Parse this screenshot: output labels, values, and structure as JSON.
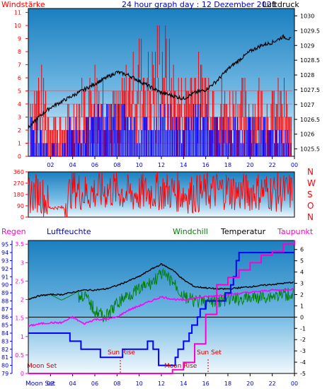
{
  "top_panel": {
    "left_label": "Windstärke",
    "title": "24 hour graph day : 12 Dezember 2021",
    "right_label": "Luftdruck",
    "left_ticks": [
      "0",
      "1",
      "2",
      "3",
      "4",
      "5",
      "6",
      "7",
      "8",
      "9",
      "10",
      "11"
    ],
    "right_ticks": [
      "1025.5",
      "1026",
      "1026.5",
      "1027",
      "1027.5",
      "1028",
      "1028.5",
      "1029",
      "1029.5",
      "1030"
    ],
    "x_ticks": [
      "02",
      "04",
      "06",
      "08",
      "10",
      "12",
      "14",
      "16",
      "18",
      "20",
      "22",
      "00"
    ],
    "colors": {
      "wind": "#ff0000",
      "gust": "#0000ff",
      "pressure": "#000000",
      "label_red": "#ff0000",
      "title_blue": "#0000cc"
    }
  },
  "mid_panel": {
    "left_ticks": [
      "0",
      "90",
      "180",
      "270",
      "360"
    ],
    "right_letters": [
      "N",
      "W",
      "S",
      "O",
      "N"
    ],
    "colors": {
      "direction": "#ff0000",
      "letters": "#ff0000"
    }
  },
  "bottom_panel": {
    "labels": {
      "regen": "Regen",
      "luftfeuchte": "Luftfeuchte",
      "windchill": "Windchill",
      "temperatur": "Temperatur",
      "taupunkt": "Taupunkt"
    },
    "rain_ticks": [
      "0",
      "0.5",
      "1",
      "1.5",
      "2",
      "2.5",
      "3",
      "3.5"
    ],
    "humidity_ticks": [
      "79",
      "80",
      "81",
      "82",
      "83",
      "84",
      "85",
      "86",
      "87",
      "88",
      "89",
      "90",
      "91",
      "92",
      "93",
      "94",
      "95"
    ],
    "temp_ticks": [
      "-5",
      "-4",
      "-3",
      "-2",
      "-1",
      "0",
      "1",
      "2",
      "3",
      "4",
      "5",
      "6"
    ],
    "x_ticks": [
      "02",
      "04",
      "06",
      "08",
      "10",
      "12",
      "14",
      "16",
      "18",
      "20",
      "22",
      "00"
    ],
    "events": {
      "moon_set": "Moon Set",
      "sun_rise": "Sun Rise",
      "moon_rise": "Moon Rise",
      "sun_set": "Sun Set",
      "bottom_left": "Moon Set"
    },
    "colors": {
      "regen": "#ff00cc",
      "luftfeuchte": "#0000cc",
      "windchill": "#008000",
      "temperatur": "#000000",
      "taupunkt": "#ff00cc",
      "rain": "#ff00cc",
      "humidity": "#0000ff",
      "event": "#cc0000"
    }
  },
  "chart_data": [
    {
      "type": "line",
      "title": "24 hour graph day : 12 Dezember 2021",
      "x_hours": [
        0,
        24
      ],
      "series": [
        {
          "name": "Luftdruck",
          "axis": "right",
          "ylim": [
            1025.25,
            1030.25
          ],
          "x": [
            0,
            1,
            2,
            3,
            4,
            5,
            6,
            7,
            8,
            9,
            10,
            11,
            12,
            13,
            14,
            15,
            16,
            17,
            18,
            19,
            20,
            21,
            22,
            23,
            23.7
          ],
          "values": [
            1026.2,
            1026.6,
            1026.9,
            1027.1,
            1027.3,
            1027.5,
            1027.7,
            1027.9,
            1028.1,
            1028.0,
            1027.8,
            1027.6,
            1027.4,
            1027.3,
            1027.2,
            1027.4,
            1027.5,
            1027.8,
            1028.2,
            1028.5,
            1028.8,
            1029.0,
            1029.1,
            1029.3,
            1029.2
          ]
        },
        {
          "name": "Windstärke",
          "axis": "left",
          "ylim": [
            0,
            11.3
          ],
          "x": [
            0,
            1,
            2,
            3,
            4,
            5,
            6,
            7,
            8,
            9,
            10,
            11,
            12,
            13,
            14,
            15,
            16,
            17,
            18,
            19,
            20,
            21,
            22,
            23,
            24
          ],
          "values": [
            2,
            2,
            1,
            1,
            2,
            2,
            3,
            3,
            3,
            3,
            2,
            3,
            3,
            3,
            2,
            3,
            3,
            2,
            2,
            2,
            2,
            2,
            2,
            2,
            1
          ]
        },
        {
          "name": "Böen",
          "axis": "left",
          "ylim": [
            0,
            11.3
          ],
          "x": [
            0,
            1,
            2,
            3,
            4,
            5,
            6,
            7,
            8,
            9,
            10,
            11,
            12,
            13,
            14,
            15,
            16,
            17,
            18,
            19,
            20,
            21,
            22,
            23,
            24
          ],
          "values": [
            5,
            7,
            4,
            3,
            4,
            6,
            7,
            6,
            5,
            7,
            9,
            8,
            11,
            7,
            6,
            8,
            7,
            6,
            5,
            6,
            5,
            6,
            5,
            6,
            2
          ]
        }
      ]
    },
    {
      "type": "line",
      "ylim": [
        0,
        360
      ],
      "series": [
        {
          "name": "Windrichtung",
          "x": [
            0,
            1,
            2,
            3,
            4,
            5,
            6,
            7,
            8,
            9,
            10,
            11,
            12,
            13,
            14,
            15,
            16,
            17,
            18,
            19,
            20,
            21,
            22,
            23,
            24
          ],
          "values": [
            180,
            200,
            90,
            60,
            240,
            190,
            200,
            210,
            220,
            180,
            190,
            200,
            210,
            200,
            190,
            180,
            200,
            210,
            220,
            190,
            200,
            210,
            200,
            190,
            200
          ]
        }
      ]
    },
    {
      "type": "line",
      "series": [
        {
          "name": "Temperatur",
          "axis": "right",
          "ylim": [
            -5,
            6.8
          ],
          "x": [
            0,
            1,
            2,
            3,
            4,
            5,
            6,
            7,
            8,
            9,
            10,
            11,
            12,
            13,
            14,
            15,
            16,
            17,
            18,
            19,
            20,
            21,
            22,
            23,
            24
          ],
          "values": [
            1.6,
            1.9,
            2.0,
            2.0,
            2.2,
            2.4,
            2.4,
            2.5,
            2.8,
            3.2,
            3.6,
            4.2,
            4.7,
            4.2,
            3.3,
            2.7,
            2.6,
            2.5,
            2.5,
            2.6,
            2.7,
            2.8,
            2.9,
            3.0,
            3.1
          ]
        },
        {
          "name": "Windchill",
          "axis": "right",
          "ylim": [
            -5,
            6.8
          ],
          "x": [
            0,
            1,
            2,
            3,
            4,
            5,
            6,
            7,
            8,
            9,
            10,
            11,
            12,
            13,
            14,
            15,
            16,
            17,
            18,
            19,
            20,
            21,
            22,
            23,
            24
          ],
          "values": [
            1.6,
            1.9,
            2.0,
            1.5,
            2.0,
            2.6,
            1.2,
            0.6,
            1.8,
            2.6,
            3.0,
            3.6,
            4.4,
            3.8,
            2.4,
            2.0,
            1.9,
            2.0,
            2.2,
            2.2,
            2.3,
            2.4,
            2.5,
            2.6,
            2.7
          ]
        },
        {
          "name": "Taupunkt",
          "axis": "right",
          "ylim": [
            -5,
            6.8
          ],
          "x": [
            0,
            1,
            2,
            3,
            4,
            5,
            6,
            7,
            8,
            9,
            10,
            11,
            12,
            13,
            14,
            15,
            16,
            17,
            18,
            19,
            20,
            21,
            22,
            23,
            24
          ],
          "values": [
            -0.8,
            -0.6,
            -0.5,
            -0.5,
            0.0,
            -0.6,
            -0.2,
            -0.2,
            0.0,
            0.6,
            1.0,
            1.4,
            1.8,
            1.6,
            1.5,
            1.7,
            1.8,
            1.9,
            2.0,
            2.1,
            2.2,
            2.3,
            2.4,
            2.4,
            2.5
          ]
        },
        {
          "name": "Luftfeuchte",
          "axis": "left",
          "ylim": [
            79,
            95.5
          ],
          "x": [
            0,
            1,
            2,
            3,
            4,
            5,
            6,
            7,
            8,
            9,
            10,
            11,
            12,
            13,
            14,
            15,
            16,
            17,
            18,
            19,
            20,
            21,
            22,
            23,
            24
          ],
          "values": [
            84,
            84,
            84,
            84,
            83,
            82,
            82,
            81,
            81,
            82,
            82,
            83,
            80,
            80,
            83,
            85,
            88,
            88,
            89,
            94,
            94,
            94,
            94,
            94,
            94
          ]
        },
        {
          "name": "Regen",
          "axis": "left",
          "ylim": [
            0,
            3.6
          ],
          "x": [
            0,
            8,
            10,
            12,
            13,
            14,
            15,
            16,
            17,
            18,
            19,
            20,
            21,
            22,
            23,
            24
          ],
          "values": [
            0,
            0,
            0,
            0,
            0.1,
            0.3,
            0.8,
            1.6,
            2.4,
            2.6,
            2.8,
            3.0,
            3.2,
            3.3,
            3.5,
            3.6
          ]
        }
      ]
    }
  ]
}
